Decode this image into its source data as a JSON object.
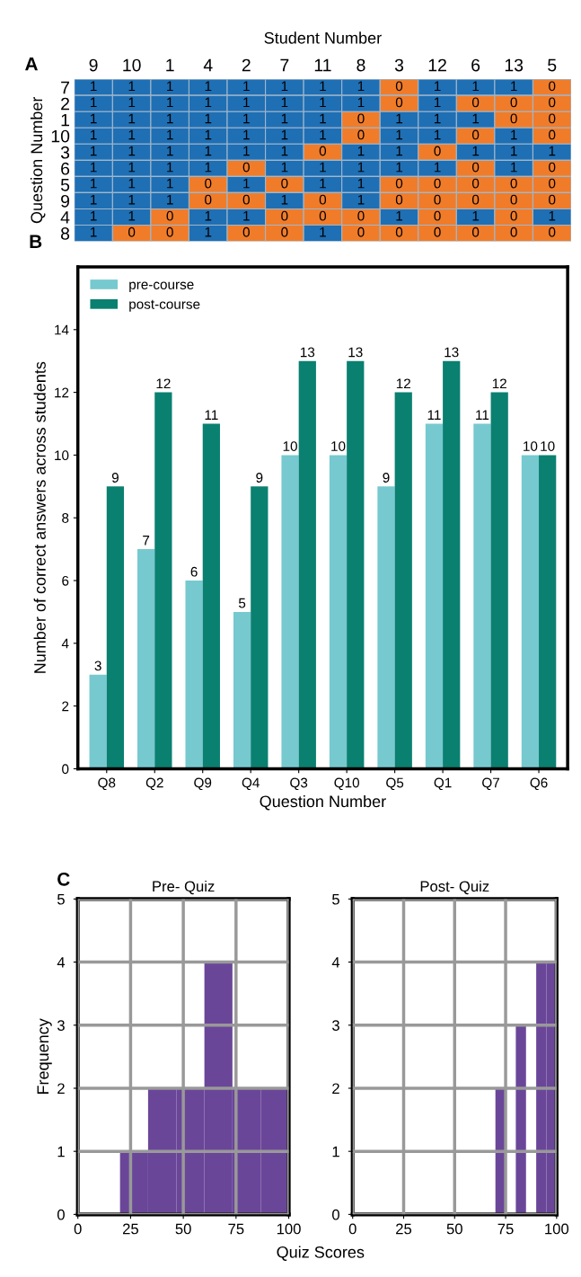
{
  "chart_data": [
    {
      "type": "heatmap",
      "xlabel": "Student Number",
      "ylabel": "Question Number",
      "annotations": [
        "A"
      ],
      "categories": [
        "9",
        "10",
        "1",
        "4",
        "2",
        "7",
        "11",
        "8",
        "3",
        "12",
        "6",
        "13",
        "5"
      ],
      "y_categories": [
        "7",
        "2",
        "1",
        "10",
        "3",
        "6",
        "5",
        "9",
        "4",
        "8"
      ],
      "colors": [
        "#f07c2a",
        "#1f6fb4"
      ],
      "cell_labels": [
        [
          "1",
          "1",
          "1",
          "1",
          "1",
          "1",
          "1",
          "1",
          "0",
          "1",
          "1",
          "1",
          "0"
        ],
        [
          "1",
          "1",
          "1",
          "1",
          "1",
          "1",
          "1",
          "1",
          "0",
          "1",
          "0",
          "0",
          "0"
        ],
        [
          "1",
          "1",
          "1",
          "1",
          "1",
          "1",
          "1",
          "0",
          "1",
          "1",
          "1",
          "0",
          "0"
        ],
        [
          "1",
          "1",
          "1",
          "1",
          "1",
          "1",
          "1",
          "0",
          "1",
          "1",
          "0",
          "1",
          "0"
        ],
        [
          "1",
          "1",
          "1",
          "1",
          "1",
          "1",
          "0",
          "1",
          "1",
          "0",
          "1",
          "1",
          "1"
        ],
        [
          "1",
          "1",
          "1",
          "1",
          "0",
          "1",
          "1",
          "1",
          "1",
          "1",
          "0",
          "1",
          "0"
        ],
        [
          "1",
          "1",
          "1",
          "0",
          "1",
          "0",
          "1",
          "1",
          "0",
          "0",
          "0",
          "0",
          "0"
        ],
        [
          "1",
          "1",
          "1",
          "0",
          "0",
          "1",
          "0",
          "1",
          "0",
          "0",
          "0",
          "0",
          "0"
        ],
        [
          "1",
          "1",
          "0",
          "1",
          "1",
          "0",
          "0",
          "0",
          "1",
          "0",
          "1",
          "0",
          "1"
        ],
        [
          "1",
          "0",
          "0",
          "1",
          "0",
          "0",
          "1",
          "0",
          "0",
          "0",
          "0",
          "0",
          "0"
        ]
      ],
      "cells": [
        [
          1,
          1,
          1,
          1,
          1,
          1,
          1,
          1,
          0,
          1,
          1,
          1,
          0
        ],
        [
          1,
          1,
          1,
          1,
          1,
          1,
          1,
          1,
          0,
          1,
          0,
          0,
          0
        ],
        [
          1,
          1,
          1,
          1,
          1,
          1,
          1,
          0,
          1,
          1,
          1,
          0,
          0
        ],
        [
          1,
          1,
          1,
          1,
          1,
          1,
          1,
          0,
          1,
          1,
          0,
          1,
          0
        ],
        [
          1,
          1,
          1,
          1,
          1,
          1,
          0,
          1,
          1,
          0,
          1,
          1,
          1
        ],
        [
          1,
          1,
          1,
          1,
          0,
          1,
          1,
          1,
          1,
          1,
          0,
          1,
          0
        ],
        [
          1,
          1,
          1,
          0,
          1,
          0,
          1,
          1,
          0,
          0,
          0,
          0,
          0
        ],
        [
          1,
          1,
          1,
          0,
          0,
          1,
          0,
          1,
          0,
          0,
          0,
          0,
          0
        ],
        [
          1,
          1,
          0,
          1,
          1,
          0,
          0,
          0,
          1,
          0,
          1,
          0,
          1
        ],
        [
          1,
          0,
          0,
          1,
          0,
          0,
          1,
          0,
          0,
          0,
          0,
          0,
          0
        ]
      ]
    },
    {
      "type": "bar",
      "xlabel": "Question Number",
      "ylabel": "Number of correct answers across students",
      "annotations": [
        "B"
      ],
      "categories": [
        "Q8",
        "Q2",
        "Q9",
        "Q4",
        "Q3",
        "Q10",
        "Q5",
        "Q1",
        "Q7",
        "Q6"
      ],
      "series": [
        {
          "name": "pre-course",
          "color": "#76c9cf",
          "values": [
            3,
            7,
            6,
            5,
            10,
            10,
            9,
            11,
            11,
            10
          ]
        },
        {
          "name": "post-course",
          "color": "#0a8070",
          "values": [
            9,
            12,
            11,
            9,
            13,
            13,
            12,
            13,
            12,
            10
          ]
        }
      ],
      "ylim": [
        0,
        16
      ],
      "yticks": [
        0,
        2,
        4,
        6,
        8,
        10,
        12,
        14
      ],
      "data_labels": true,
      "legend": "top left",
      "grid": false
    },
    {
      "type": "histogram",
      "title": "Pre- Quiz",
      "ylabel": "Frequency",
      "xlabel": "Quiz Scores",
      "annotations": [
        "C"
      ],
      "color": "#6a4699",
      "bins": [
        20,
        33.3,
        46.7,
        60,
        73.3,
        86.7,
        100
      ],
      "values": [
        1,
        2,
        2,
        4,
        2,
        2
      ],
      "xlim": [
        0,
        100
      ],
      "xticks": [
        0,
        25,
        50,
        75,
        100
      ],
      "ylim": [
        0,
        5
      ],
      "yticks": [
        0,
        1,
        2,
        3,
        4,
        5
      ],
      "grid": true
    },
    {
      "type": "histogram",
      "title": "Post- Quiz",
      "color": "#6a4699",
      "bins": [
        70,
        75,
        80,
        85,
        90,
        95,
        100
      ],
      "values": [
        2,
        0,
        3,
        0,
        4,
        4
      ],
      "xlim": [
        0,
        100
      ],
      "xticks": [
        0,
        25,
        50,
        75,
        100
      ],
      "ylim": [
        0,
        5
      ],
      "yticks": [
        0,
        1,
        2,
        3,
        4,
        5
      ],
      "grid": true
    }
  ]
}
